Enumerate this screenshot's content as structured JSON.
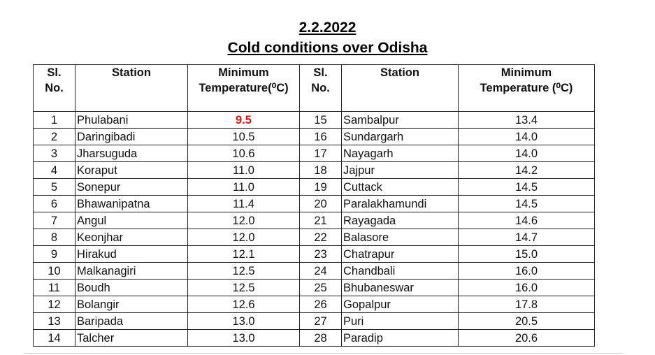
{
  "header": {
    "date": "2.2.2022",
    "title": "Cold conditions over Odisha"
  },
  "table": {
    "header": [
      "Sl.\nNo.",
      "Station",
      "Minimum\nTemperature(⁰C)",
      "Sl.\nNo.",
      "Station",
      "Minimum\nTemperature (⁰C)"
    ],
    "rows": [
      [
        "1",
        "Phulabani",
        "9.5",
        "15",
        "Sambalpur",
        "13.4"
      ],
      [
        "2",
        "Daringibadi",
        "10.5",
        "16",
        "Sundargarh",
        "14.0"
      ],
      [
        "3",
        "Jharsuguda",
        "10.6",
        "17",
        "Nayagarh",
        "14.0"
      ],
      [
        "4",
        "Koraput",
        "11.0",
        "18",
        "Jajpur",
        "14.2"
      ],
      [
        "5",
        "Sonepur",
        "11.0",
        "19",
        "Cuttack",
        "14.5"
      ],
      [
        "6",
        "Bhawanipatna",
        "11.4",
        "20",
        "Paralakhamundi",
        "14.5"
      ],
      [
        "7",
        "Angul",
        "12.0",
        "21",
        "Rayagada",
        "14.6"
      ],
      [
        "8",
        "Keonjhar",
        "12.0",
        "22",
        "Balasore",
        "14.7"
      ],
      [
        "9",
        "Hirakud",
        "12.1",
        "23",
        "Chatrapur",
        "15.0"
      ],
      [
        "10",
        "Malkanagiri",
        "12.5",
        "24",
        "Chandbali",
        "16.0"
      ],
      [
        "11",
        "Boudh",
        "12.5",
        "25",
        "Bhubaneswar",
        "16.0"
      ],
      [
        "12",
        "Bolangir",
        "12.6",
        "26",
        "Gopalpur",
        "17.8"
      ],
      [
        "13",
        "Baripada",
        "13.0",
        "27",
        "Puri",
        "20.5"
      ],
      [
        "14",
        "Talcher",
        "13.0",
        "28",
        "Paradip",
        "20.6"
      ]
    ]
  }
}
